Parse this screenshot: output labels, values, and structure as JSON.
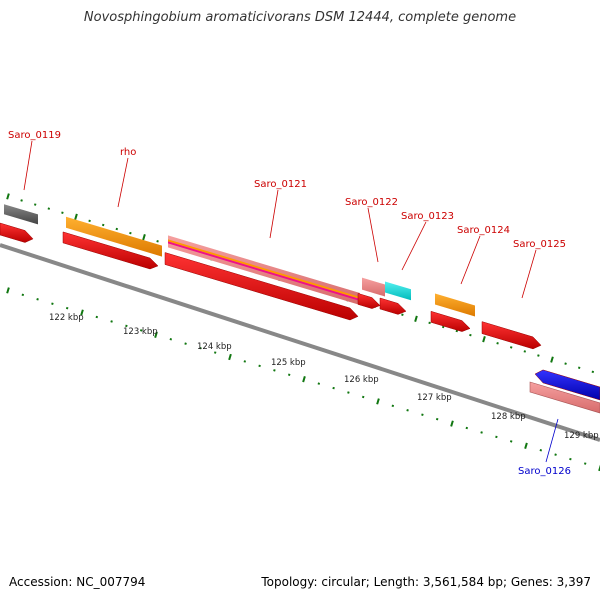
{
  "title": "Novosphingobium aromaticivorans DSM 12444, complete genome",
  "footer": {
    "accession": "Accession: NC_007794",
    "topology": "Topology: circular; Length: 3,561,584 bp; Genes: 3,397"
  },
  "colors": {
    "label_forward": "#cc0000",
    "label_reverse": "#0000cc",
    "cds_red": "#ee0000",
    "gene_orange": "#ff9900",
    "gene_gray": "#666666",
    "rrna_pink": "#ee8888",
    "cyan": "#11dddd",
    "blue": "#0000ee",
    "magenta": "#ee1188",
    "tick_green": "#117711",
    "backbone": "#888888"
  },
  "genes": [
    {
      "label": "Saro_0119",
      "strand": "forward"
    },
    {
      "label": "rho",
      "strand": "forward"
    },
    {
      "label": "Saro_0121",
      "strand": "forward"
    },
    {
      "label": "Saro_0122",
      "strand": "forward"
    },
    {
      "label": "Saro_0123",
      "strand": "forward"
    },
    {
      "label": "Saro_0124",
      "strand": "forward"
    },
    {
      "label": "Saro_0125",
      "strand": "forward"
    },
    {
      "label": "Saro_0126",
      "strand": "reverse"
    }
  ],
  "scale_ticks": [
    "122 kbp",
    "123 kbp",
    "124 kbp",
    "125 kbp",
    "126 kbp",
    "127 kbp",
    "128 kbp",
    "129 kbp"
  ]
}
